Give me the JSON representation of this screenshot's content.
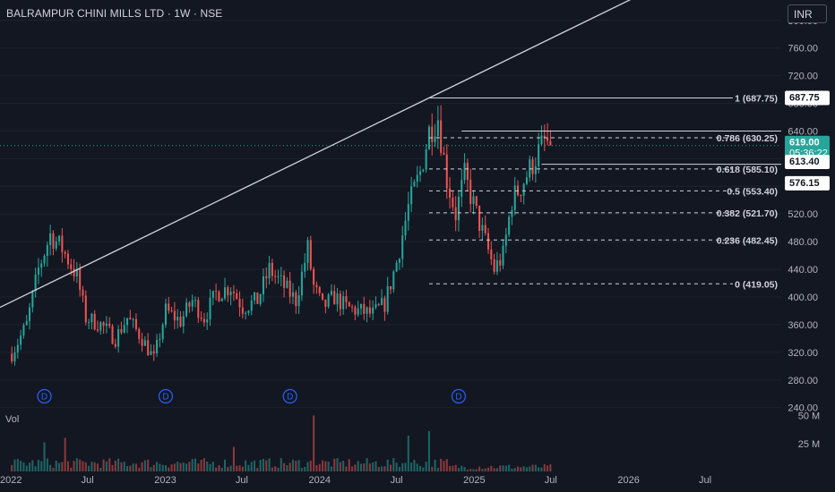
{
  "header": {
    "title": "BALRAMPUR CHINI MILLS LTD · 1W · NSE"
  },
  "currency": "INR",
  "volume_label": "Vol",
  "colors": {
    "background": "#131722",
    "up": "#26a69a",
    "down": "#ef5350",
    "grid": "#1e222d",
    "text": "#d1d4dc",
    "price_tag": "#26a69a"
  },
  "chart_data": {
    "type": "candlestick",
    "y_axis": {
      "ylim": [
        237,
        823
      ],
      "ticks": [
        800,
        760,
        720,
        680,
        640,
        600,
        560,
        520,
        480,
        440,
        400,
        360,
        320,
        280,
        240
      ],
      "format": "0.00"
    },
    "x_axis": {
      "labels": [
        "2022",
        "Jul",
        "2023",
        "Jul",
        "2024",
        "Jul",
        "2025",
        "Jul",
        "2026",
        "Jul"
      ]
    },
    "volume_axis": {
      "ticks": [
        "50 M",
        "25 M"
      ]
    },
    "last_price": {
      "value": "619.00",
      "countdown": "05:36:22"
    },
    "price_labels": [
      "687.75",
      "613.40",
      "576.15"
    ],
    "fibonacci": [
      {
        "level": "1",
        "price": 687.75,
        "label": "1 (687.75)"
      },
      {
        "level": "0.786",
        "price": 630.25,
        "label": "0.786 (630.25)"
      },
      {
        "level": "0.618",
        "price": 585.1,
        "label": "0.618 (585.10)"
      },
      {
        "level": "0.5",
        "price": 553.4,
        "label": "0.5 (553.40)"
      },
      {
        "level": "0.382",
        "price": 521.7,
        "label": "0.382 (521.70)"
      },
      {
        "level": "0.236",
        "price": 482.45,
        "label": "0.236 (482.45)"
      },
      {
        "level": "0",
        "price": 419.05,
        "label": "0 (419.05)"
      }
    ],
    "dividend_markers": [
      "D",
      "D",
      "D",
      "D"
    ],
    "anchors": [
      [
        "2022-01-03",
        318
      ],
      [
        "2022-02-07",
        360
      ],
      [
        "2022-03-07",
        440
      ],
      [
        "2022-04-04",
        490
      ],
      [
        "2022-05-02",
        470
      ],
      [
        "2022-06-06",
        430
      ],
      [
        "2022-06-27",
        370
      ],
      [
        "2022-08-01",
        360
      ],
      [
        "2022-09-05",
        340
      ],
      [
        "2022-10-03",
        370
      ],
      [
        "2022-11-07",
        340
      ],
      [
        "2022-12-05",
        310
      ],
      [
        "2023-01-02",
        380
      ],
      [
        "2023-02-06",
        365
      ],
      [
        "2023-03-06",
        395
      ],
      [
        "2023-04-03",
        370
      ],
      [
        "2023-05-01",
        405
      ],
      [
        "2023-06-05",
        415
      ],
      [
        "2023-07-03",
        385
      ],
      [
        "2023-08-07",
        395
      ],
      [
        "2023-09-04",
        440
      ],
      [
        "2023-10-02",
        420
      ],
      [
        "2023-11-06",
        395
      ],
      [
        "2023-12-04",
        470
      ],
      [
        "2023-12-18",
        415
      ],
      [
        "2024-01-08",
        385
      ],
      [
        "2024-02-05",
        400
      ],
      [
        "2024-03-04",
        385
      ],
      [
        "2024-04-01",
        380
      ],
      [
        "2024-05-06",
        375
      ],
      [
        "2024-06-03",
        390
      ],
      [
        "2024-07-01",
        450
      ],
      [
        "2024-07-29",
        530
      ],
      [
        "2024-08-26",
        580
      ],
      [
        "2024-09-16",
        640
      ],
      [
        "2024-10-07",
        660
      ],
      [
        "2024-10-28",
        570
      ],
      [
        "2024-11-18",
        520
      ],
      [
        "2024-12-09",
        575
      ],
      [
        "2025-01-06",
        520
      ],
      [
        "2025-01-27",
        480
      ],
      [
        "2025-02-17",
        440
      ],
      [
        "2025-03-10",
        460
      ],
      [
        "2025-03-31",
        540
      ],
      [
        "2025-04-21",
        560
      ],
      [
        "2025-05-12",
        585
      ],
      [
        "2025-06-02",
        610
      ],
      [
        "2025-06-16",
        625
      ],
      [
        "2025-06-30",
        619
      ]
    ],
    "volume_peaks": [
      [
        "2022-03-21",
        26
      ],
      [
        "2022-05-09",
        30
      ],
      [
        "2023-06-12",
        22
      ],
      [
        "2023-12-18",
        50
      ],
      [
        "2024-07-29",
        32
      ],
      [
        "2024-09-16",
        36
      ]
    ]
  }
}
